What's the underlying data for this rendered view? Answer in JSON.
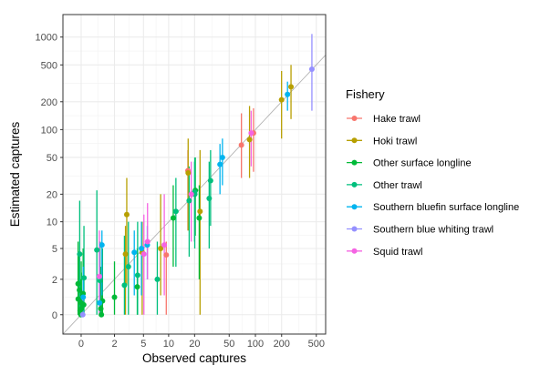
{
  "chart_data": {
    "type": "scatter",
    "xlabel": "Observed captures",
    "ylabel": "Estimated captures",
    "scale": "pseudo-log (asinh-like), 0 shown at origin",
    "x_ticks": [
      0,
      2,
      5,
      10,
      20,
      50,
      100,
      200,
      500
    ],
    "y_ticks": [
      0,
      2,
      5,
      10,
      20,
      50,
      100,
      200,
      500,
      1000
    ],
    "grid": true,
    "reference_line": "y = x",
    "error_bars": "vertical intervals",
    "legend": {
      "title": "Fishery",
      "position": "right",
      "entries": [
        {
          "name": "Hake trawl",
          "color": "#F8766D"
        },
        {
          "name": "Hoki trawl",
          "color": "#B79F00"
        },
        {
          "name": "Other surface longline",
          "color": "#00BA38"
        },
        {
          "name": "Other trawl",
          "color": "#00BF7D"
        },
        {
          "name": "Southern bluefin surface longline",
          "color": "#00B4EF"
        },
        {
          "name": "Southern blue whiting trawl",
          "color": "#9590FF"
        },
        {
          "name": "Squid trawl",
          "color": "#F564E3"
        }
      ]
    },
    "series": [
      {
        "name": "Hake trawl",
        "points": [
          {
            "x": 9,
            "y": 4.2,
            "lo": 0,
            "hi": 6
          },
          {
            "x": 18,
            "y": 36,
            "lo": 8,
            "hi": 60
          },
          {
            "x": 70,
            "y": 68,
            "lo": 30,
            "hi": 150
          },
          {
            "x": 90,
            "y": 92,
            "lo": 35,
            "hi": 170
          }
        ]
      },
      {
        "name": "Hoki trawl",
        "points": [
          {
            "x": 3,
            "y": 12,
            "lo": 1.6,
            "hi": 30
          },
          {
            "x": 3,
            "y": 4.3,
            "lo": 0,
            "hi": 9
          },
          {
            "x": 5,
            "y": 4.5,
            "lo": 0,
            "hi": 10
          },
          {
            "x": 8,
            "y": 5,
            "lo": 1,
            "hi": 20
          },
          {
            "x": 18,
            "y": 34,
            "lo": 8,
            "hi": 80
          },
          {
            "x": 25,
            "y": 13,
            "lo": 0,
            "hi": 60
          },
          {
            "x": 80,
            "y": 78,
            "lo": 30,
            "hi": 180
          },
          {
            "x": 210,
            "y": 210,
            "lo": 80,
            "hi": 430
          },
          {
            "x": 260,
            "y": 290,
            "lo": 130,
            "hi": 500
          }
        ]
      },
      {
        "name": "Other surface longline",
        "points": [
          {
            "x": 0,
            "y": 0,
            "lo": 0,
            "hi": 1.2
          },
          {
            "x": 0,
            "y": 0.2,
            "lo": 0,
            "hi": 2
          },
          {
            "x": 0,
            "y": 0.5,
            "lo": 0,
            "hi": 3
          },
          {
            "x": 0,
            "y": 0.8,
            "lo": 0,
            "hi": 4
          },
          {
            "x": 0,
            "y": 1.1,
            "lo": 0,
            "hi": 5
          },
          {
            "x": 0,
            "y": 1.7,
            "lo": 0,
            "hi": 6
          },
          {
            "x": 0,
            "y": 0.3,
            "lo": 0,
            "hi": 2.5
          },
          {
            "x": 0,
            "y": 1.3,
            "lo": 0,
            "hi": 4
          },
          {
            "x": 0,
            "y": 0.6,
            "lo": 0,
            "hi": 3.5
          },
          {
            "x": 1,
            "y": 0,
            "lo": 0,
            "hi": 2
          },
          {
            "x": 1,
            "y": 0.3,
            "lo": 0,
            "hi": 3
          },
          {
            "x": 1,
            "y": 0.7,
            "lo": 0,
            "hi": 5
          },
          {
            "x": 2,
            "y": 0.9,
            "lo": 0,
            "hi": 3.5
          },
          {
            "x": 4,
            "y": 1.5,
            "lo": 0,
            "hi": 5
          },
          {
            "x": 12,
            "y": 11,
            "lo": 3,
            "hi": 25
          },
          {
            "x": 20,
            "y": 22,
            "lo": 7,
            "hi": 50
          },
          {
            "x": 21,
            "y": 11,
            "lo": 2,
            "hi": 25
          }
        ]
      },
      {
        "name": "Other trawl",
        "points": [
          {
            "x": 0,
            "y": 4.3,
            "lo": 0,
            "hi": 17
          },
          {
            "x": 0,
            "y": 2.1,
            "lo": 0,
            "hi": 9
          },
          {
            "x": 1,
            "y": 1.9,
            "lo": 0,
            "hi": 6
          },
          {
            "x": 1,
            "y": 4.8,
            "lo": 0,
            "hi": 22
          },
          {
            "x": 3,
            "y": 1.6,
            "lo": 0,
            "hi": 7
          },
          {
            "x": 3,
            "y": 3,
            "lo": 0,
            "hi": 10
          },
          {
            "x": 4,
            "y": 2.3,
            "lo": 0,
            "hi": 10
          },
          {
            "x": 8,
            "y": 2,
            "lo": 0,
            "hi": 6
          },
          {
            "x": 13,
            "y": 13,
            "lo": 3,
            "hi": 30
          },
          {
            "x": 18,
            "y": 17,
            "lo": 4,
            "hi": 40
          },
          {
            "x": 19,
            "y": 20,
            "lo": 5,
            "hi": 50
          },
          {
            "x": 21,
            "y": 21,
            "lo": 6,
            "hi": 45
          },
          {
            "x": 30,
            "y": 18,
            "lo": 5,
            "hi": 45
          },
          {
            "x": 30,
            "y": 28,
            "lo": 9,
            "hi": 60
          }
        ]
      },
      {
        "name": "Southern bluefin surface longline",
        "points": [
          {
            "x": 0,
            "y": 0.9,
            "lo": 0,
            "hi": 3
          },
          {
            "x": 1,
            "y": 0.6,
            "lo": 0,
            "hi": 5
          },
          {
            "x": 1,
            "y": 5.5,
            "lo": 1,
            "hi": 8
          },
          {
            "x": 4,
            "y": 4.5,
            "lo": 1,
            "hi": 8
          },
          {
            "x": 5,
            "y": 5,
            "lo": 1,
            "hi": 10
          },
          {
            "x": 6,
            "y": 5.5,
            "lo": 2,
            "hi": 9
          },
          {
            "x": 40,
            "y": 42,
            "lo": 20,
            "hi": 70
          },
          {
            "x": 45,
            "y": 50,
            "lo": 25,
            "hi": 80
          },
          {
            "x": 230,
            "y": 240,
            "lo": 160,
            "hi": 330
          }
        ]
      },
      {
        "name": "Southern blue whiting trawl",
        "points": [
          {
            "x": 0,
            "y": 0,
            "lo": 0,
            "hi": 0.8
          },
          {
            "x": 440,
            "y": 450,
            "lo": 160,
            "hi": 1080
          }
        ]
      },
      {
        "name": "Squid trawl",
        "points": [
          {
            "x": 1,
            "y": 2.2,
            "lo": 0,
            "hi": 8
          },
          {
            "x": 5,
            "y": 4.3,
            "lo": 0,
            "hi": 12
          },
          {
            "x": 6,
            "y": 6,
            "lo": 2,
            "hi": 16
          },
          {
            "x": 9,
            "y": 5.5,
            "lo": 1,
            "hi": 20
          },
          {
            "x": 17,
            "y": 20,
            "lo": 6,
            "hi": 45
          },
          {
            "x": 95,
            "y": 92,
            "lo": 40,
            "hi": 160
          }
        ]
      }
    ]
  }
}
